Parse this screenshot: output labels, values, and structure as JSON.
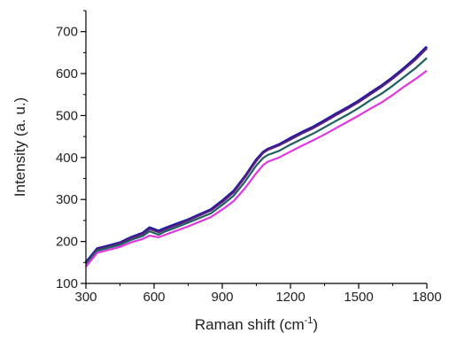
{
  "chart_data": {
    "type": "line",
    "xlabel": "Raman shift (cm",
    "xlabel_sup": "-1",
    "xlabel_end": ")",
    "ylabel": "Intensity (a. u.)",
    "xlim": [
      300,
      1800
    ],
    "ylim": [
      100,
      750
    ],
    "x_ticks": [
      300,
      600,
      900,
      1200,
      1500,
      1800
    ],
    "y_ticks": [
      100,
      200,
      300,
      400,
      500,
      600,
      700
    ],
    "x_tick_labels": [
      "300",
      "600",
      "900",
      "1200",
      "1500",
      "1800"
    ],
    "y_tick_labels": [
      "100",
      "200",
      "300",
      "400",
      "500",
      "600",
      "700"
    ],
    "grid": false,
    "legend": "none",
    "x": [
      300,
      350,
      400,
      450,
      500,
      550,
      580,
      620,
      650,
      700,
      750,
      800,
      850,
      900,
      950,
      1000,
      1050,
      1080,
      1100,
      1150,
      1200,
      1250,
      1300,
      1350,
      1400,
      1450,
      1500,
      1550,
      1600,
      1650,
      1700,
      1750,
      1800
    ],
    "series": [
      {
        "color": "#1a1aa6",
        "values": [
          150,
          183,
          190,
          197,
          210,
          220,
          233,
          225,
          232,
          242,
          252,
          264,
          276,
          297,
          320,
          355,
          395,
          413,
          420,
          431,
          446,
          460,
          473,
          488,
          504,
          519,
          535,
          553,
          571,
          591,
          613,
          637,
          664
        ]
      },
      {
        "color": "#5a1f7a",
        "values": [
          148,
          181,
          188,
          196,
          208,
          218,
          230,
          222,
          229,
          239,
          250,
          262,
          274,
          294,
          317,
          353,
          392,
          411,
          418,
          429,
          443,
          457,
          470,
          485,
          501,
          516,
          532,
          550,
          568,
          588,
          610,
          633,
          660
        ]
      },
      {
        "color": "#1f5f5f",
        "values": [
          146,
          178,
          185,
          192,
          204,
          213,
          224,
          216,
          224,
          234,
          245,
          256,
          267,
          287,
          309,
          343,
          381,
          399,
          406,
          416,
          431,
          444,
          457,
          472,
          487,
          502,
          518,
          536,
          552,
          571,
          592,
          613,
          637
        ]
      },
      {
        "color": "#e038e0",
        "values": [
          140,
          173,
          180,
          187,
          198,
          206,
          214,
          210,
          216,
          226,
          236,
          247,
          258,
          276,
          296,
          327,
          363,
          382,
          390,
          400,
          414,
          428,
          441,
          455,
          470,
          485,
          500,
          516,
          531,
          549,
          569,
          587,
          607
        ]
      }
    ]
  }
}
